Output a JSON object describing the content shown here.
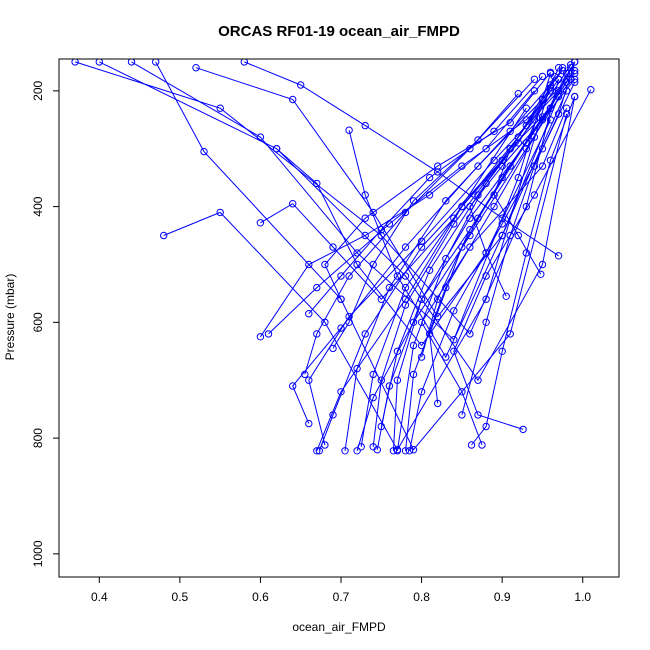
{
  "chart_data": {
    "type": "line",
    "title": "ORCAS RF01-19 ocean_air_FMPD",
    "xlabel": "ocean_air_FMPD",
    "ylabel": "Pressure (mbar)",
    "xlim": [
      0.35,
      1.045
    ],
    "ylim": [
      1040,
      145
    ],
    "y_reversed": true,
    "grid": false,
    "xticks": [
      0.4,
      0.5,
      0.6,
      0.7,
      0.8,
      0.9,
      1.0
    ],
    "xtick_labels": [
      "0.4",
      "0.5",
      "0.6",
      "0.7",
      "0.8",
      "0.9",
      "1.0"
    ],
    "yticks": [
      200,
      400,
      600,
      800,
      1000
    ],
    "ytick_labels": [
      "200",
      "400",
      "600",
      "800",
      "1000"
    ],
    "marker": "open-circle",
    "color": "#0000ff",
    "series": [
      {
        "x": [
          0.37,
          0.55,
          0.75,
          0.86,
          0.93,
          0.97
        ],
        "y": [
          150,
          230,
          450,
          620,
          400,
          180
        ]
      },
      {
        "x": [
          0.4,
          0.62,
          0.78,
          0.87,
          0.95,
          0.99
        ],
        "y": [
          150,
          300,
          520,
          700,
          500,
          210
        ]
      },
      {
        "x": [
          0.44,
          0.6,
          0.72,
          0.84,
          0.92,
          0.96
        ],
        "y": [
          150,
          280,
          480,
          630,
          350,
          170
        ]
      },
      {
        "x": [
          0.47,
          0.53,
          0.7,
          0.79,
          0.91,
          0.98
        ],
        "y": [
          150,
          305,
          560,
          820,
          620,
          240
        ]
      },
      {
        "x": [
          0.52,
          0.64,
          0.74,
          0.82,
          0.9,
          0.98
        ],
        "y": [
          160,
          215,
          410,
          590,
          450,
          200
        ]
      },
      {
        "x": [
          0.48,
          0.55,
          0.68,
          0.77,
          0.88,
          0.96
        ],
        "y": [
          450,
          410,
          600,
          820,
          560,
          190
        ]
      },
      {
        "x": [
          0.6,
          0.66,
          0.73,
          0.81,
          0.88,
          0.94
        ],
        "y": [
          625,
          500,
          450,
          380,
          300,
          200
        ]
      },
      {
        "x": [
          0.61,
          0.67,
          0.76,
          0.85,
          0.93,
          0.99
        ],
        "y": [
          620,
          540,
          430,
          330,
          250,
          170
        ]
      },
      {
        "x": [
          0.67,
          0.7,
          0.78,
          0.85,
          0.92,
          0.96
        ],
        "y": [
          822,
          720,
          560,
          400,
          290,
          200
        ]
      },
      {
        "x": [
          0.673,
          0.69,
          0.73,
          0.8,
          0.9,
          0.97
        ],
        "y": [
          822,
          760,
          620,
          470,
          320,
          180
        ]
      },
      {
        "x": [
          0.72,
          0.74,
          0.79,
          0.86,
          0.93,
          0.985
        ],
        "y": [
          822,
          730,
          600,
          450,
          300,
          180
        ]
      },
      {
        "x": [
          0.765,
          0.77,
          0.8,
          0.86,
          0.93,
          0.97
        ],
        "y": [
          822,
          700,
          560,
          420,
          290,
          160
        ]
      },
      {
        "x": [
          0.78,
          0.79,
          0.83,
          0.89,
          0.94,
          0.98
        ],
        "y": [
          822,
          690,
          540,
          400,
          280,
          170
        ]
      },
      {
        "x": [
          0.785,
          0.8,
          0.84,
          0.9,
          0.95,
          0.99
        ],
        "y": [
          822,
          720,
          580,
          430,
          300,
          185
        ]
      },
      {
        "x": [
          0.705,
          0.72,
          0.76,
          0.83,
          0.91,
          0.975
        ],
        "y": [
          822,
          680,
          540,
          390,
          270,
          165
        ]
      },
      {
        "x": [
          0.74,
          0.75,
          0.78,
          0.84,
          0.91,
          0.96
        ],
        "y": [
          815,
          700,
          570,
          430,
          300,
          195
        ]
      },
      {
        "x": [
          0.862,
          0.88,
          0.9,
          0.93,
          0.96,
          0.99
        ],
        "y": [
          812,
          780,
          650,
          480,
          320,
          210
        ]
      },
      {
        "x": [
          0.926,
          0.87,
          0.84,
          0.88,
          0.94,
          1.01
        ],
        "y": [
          785,
          760,
          650,
          520,
          380,
          198
        ]
      },
      {
        "x": [
          0.875,
          0.85,
          0.8,
          0.86,
          0.95,
          0.98
        ],
        "y": [
          812,
          720,
          600,
          470,
          330,
          230
        ]
      },
      {
        "x": [
          0.66,
          0.64,
          0.7,
          0.78,
          0.87,
          0.95
        ],
        "y": [
          775,
          710,
          610,
          470,
          330,
          215
        ]
      },
      {
        "x": [
          0.68,
          0.66,
          0.71,
          0.8,
          0.89,
          0.97
        ],
        "y": [
          812,
          700,
          590,
          460,
          320,
          200
        ]
      },
      {
        "x": [
          0.905,
          0.88,
          0.86,
          0.9,
          0.95,
          0.99
        ],
        "y": [
          555,
          480,
          400,
          330,
          250,
          180
        ]
      },
      {
        "x": [
          0.948,
          0.92,
          0.89,
          0.91,
          0.96,
          0.985
        ],
        "y": [
          517,
          450,
          380,
          300,
          230,
          160
        ]
      },
      {
        "x": [
          0.6,
          0.64,
          0.69,
          0.75,
          0.84,
          0.93
        ],
        "y": [
          428,
          395,
          470,
          560,
          420,
          230
        ]
      },
      {
        "x": [
          0.62,
          0.67,
          0.72,
          0.8,
          0.88,
          0.96
        ],
        "y": [
          300,
          360,
          500,
          640,
          480,
          250
        ]
      },
      {
        "x": [
          0.71,
          0.73,
          0.77,
          0.83,
          0.9,
          0.97
        ],
        "y": [
          268,
          380,
          520,
          660,
          450,
          210
        ]
      },
      {
        "x": [
          0.66,
          0.7,
          0.75,
          0.81,
          0.89,
          0.95
        ],
        "y": [
          585,
          520,
          440,
          350,
          270,
          175
        ]
      },
      {
        "x": [
          0.69,
          0.71,
          0.74,
          0.79,
          0.87,
          0.94
        ],
        "y": [
          645,
          600,
          500,
          390,
          285,
          180
        ]
      },
      {
        "x": [
          0.75,
          0.77,
          0.81,
          0.87,
          0.93,
          0.975
        ],
        "y": [
          780,
          650,
          510,
          380,
          260,
          160
        ]
      },
      {
        "x": [
          0.77,
          0.79,
          0.83,
          0.88,
          0.94,
          0.985
        ],
        "y": [
          822,
          640,
          490,
          360,
          250,
          155
        ]
      },
      {
        "x": [
          0.7,
          0.68,
          0.73,
          0.82,
          0.91,
          0.96
        ],
        "y": [
          560,
          500,
          420,
          330,
          255,
          168
        ]
      },
      {
        "x": [
          0.82,
          0.81,
          0.85,
          0.9,
          0.95,
          0.99
        ],
        "y": [
          740,
          620,
          470,
          350,
          245,
          165
        ]
      },
      {
        "x": [
          0.655,
          0.67,
          0.71,
          0.78,
          0.86,
          0.92
        ],
        "y": [
          690,
          620,
          520,
          410,
          300,
          205
        ]
      },
      {
        "x": [
          0.725,
          0.74,
          0.78,
          0.85,
          0.92,
          0.965
        ],
        "y": [
          815,
          690,
          540,
          400,
          280,
          175
        ]
      },
      {
        "x": [
          0.8,
          0.82,
          0.86,
          0.91,
          0.96,
          0.99
        ],
        "y": [
          660,
          560,
          440,
          330,
          230,
          150
        ]
      },
      {
        "x": [
          0.58,
          0.65,
          0.73,
          0.82,
          0.9,
          0.97
        ],
        "y": [
          150,
          190,
          260,
          340,
          420,
          485
        ]
      },
      {
        "x": [
          0.85,
          0.88,
          0.91,
          0.94,
          0.97,
          0.99
        ],
        "y": [
          760,
          600,
          450,
          330,
          240,
          150
        ]
      },
      {
        "x": [
          0.745,
          0.76,
          0.8,
          0.87,
          0.93,
          0.98
        ],
        "y": [
          820,
          710,
          560,
          420,
          290,
          185
        ]
      }
    ]
  }
}
